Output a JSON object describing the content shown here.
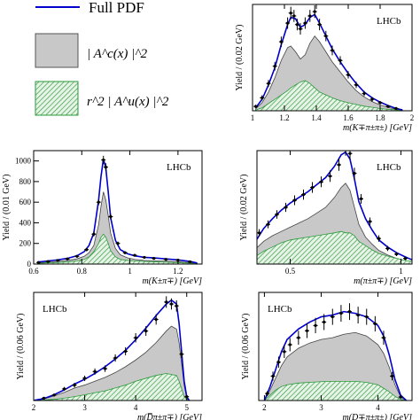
{
  "legend": {
    "entries": [
      {
        "label": "Full PDF",
        "style": "line",
        "color": "#0000cc"
      },
      {
        "label": "| A^c(x) |^2",
        "style": "gray-fill",
        "color": "#c8c8c8"
      },
      {
        "label": "r^2 | A^u(x) |^2",
        "style": "green-hatch",
        "color": "#2a9a3a"
      }
    ]
  },
  "colors": {
    "full_pdf": "#0000cc",
    "component_c": "#c8c8c8",
    "component_u": "#2a9a3a",
    "data": "#000000"
  },
  "chart_data": [
    {
      "id": "k_pi_pi",
      "type": "line",
      "title": "LHCb",
      "xlabel": "m(K∓π±π±) [GeV]",
      "ylabel": "Yield / (0.02 GeV)",
      "xlim": [
        1.0,
        2.0
      ],
      "ylim": [
        0,
        370
      ],
      "xticks": [
        1,
        1.2,
        1.4,
        1.6,
        1.8,
        2
      ],
      "xticklabels": [
        "1",
        "1.2",
        "1.4",
        "1.6",
        "1.8",
        "2"
      ],
      "yticks": [],
      "yticklabels": [],
      "x": [
        1.02,
        1.06,
        1.1,
        1.14,
        1.18,
        1.22,
        1.24,
        1.27,
        1.3,
        1.33,
        1.36,
        1.39,
        1.42,
        1.46,
        1.5,
        1.55,
        1.6,
        1.65,
        1.7,
        1.75,
        1.8,
        1.85,
        1.9,
        1.94
      ],
      "series": [
        {
          "name": "Full PDF",
          "values": [
            10,
            40,
            90,
            150,
            230,
            300,
            325,
            320,
            290,
            300,
            325,
            335,
            305,
            260,
            215,
            170,
            130,
            95,
            65,
            45,
            30,
            18,
            8,
            3
          ]
        },
        {
          "name": "| A^c(x) |^2",
          "values": [
            7,
            28,
            65,
            115,
            175,
            220,
            225,
            205,
            180,
            195,
            235,
            260,
            240,
            205,
            170,
            135,
            100,
            70,
            48,
            32,
            20,
            12,
            5,
            2
          ]
        },
        {
          "name": "r^2 | A^u(x) |^2",
          "values": [
            3,
            10,
            25,
            40,
            55,
            70,
            80,
            90,
            100,
            105,
            95,
            80,
            65,
            55,
            45,
            35,
            28,
            22,
            16,
            12,
            8,
            5,
            3,
            1
          ]
        }
      ],
      "points": {
        "x": [
          1.02,
          1.06,
          1.1,
          1.14,
          1.18,
          1.22,
          1.24,
          1.26,
          1.28,
          1.3,
          1.33,
          1.36,
          1.39,
          1.42,
          1.46,
          1.5,
          1.55,
          1.6,
          1.65,
          1.7,
          1.75,
          1.8,
          1.85,
          1.9
        ],
        "y": [
          15,
          45,
          95,
          155,
          240,
          305,
          340,
          330,
          300,
          285,
          305,
          330,
          345,
          300,
          260,
          210,
          175,
          125,
          90,
          60,
          40,
          28,
          15,
          8
        ],
        "err": [
          6,
          9,
          12,
          15,
          18,
          20,
          22,
          21,
          20,
          20,
          20,
          21,
          22,
          20,
          18,
          17,
          15,
          13,
          11,
          9,
          8,
          6,
          5,
          4
        ]
      }
    },
    {
      "id": "k_pi",
      "type": "line",
      "title": "LHCb",
      "xlabel": "m(K±π∓) [GeV]",
      "ylabel": "Yield / (0.01 GeV)",
      "xlim": [
        0.6,
        1.3
      ],
      "ylim": [
        0,
        1100
      ],
      "xticks": [
        0.6,
        0.8,
        1.0,
        1.2
      ],
      "xticklabels": [
        "0.6",
        "0.8",
        "1",
        "1.2"
      ],
      "yticks": [
        0,
        200,
        400,
        600,
        800,
        1000
      ],
      "yticklabels": [
        "0",
        "200",
        "400",
        "600",
        "800",
        "1000"
      ],
      "x": [
        0.62,
        0.66,
        0.7,
        0.74,
        0.78,
        0.81,
        0.83,
        0.85,
        0.87,
        0.88,
        0.89,
        0.9,
        0.91,
        0.92,
        0.94,
        0.96,
        0.99,
        1.02,
        1.06,
        1.1,
        1.15,
        1.2,
        1.25,
        1.28
      ],
      "series": [
        {
          "name": "Full PDF",
          "values": [
            20,
            30,
            40,
            55,
            80,
            120,
            180,
            300,
            620,
            850,
            1020,
            930,
            700,
            450,
            230,
            140,
            100,
            80,
            65,
            60,
            50,
            40,
            25,
            10
          ]
        },
        {
          "name": "| A^c(x) |^2",
          "values": [
            12,
            18,
            25,
            35,
            50,
            75,
            110,
            180,
            380,
            560,
            700,
            620,
            470,
            300,
            150,
            90,
            60,
            45,
            35,
            32,
            28,
            22,
            14,
            6
          ]
        },
        {
          "name": "r^2 | A^u(x) |^2",
          "values": [
            8,
            12,
            15,
            20,
            30,
            45,
            70,
            120,
            200,
            260,
            290,
            260,
            200,
            130,
            70,
            45,
            35,
            30,
            25,
            22,
            18,
            14,
            9,
            4
          ]
        }
      ],
      "points": {
        "x": [
          0.62,
          0.66,
          0.7,
          0.74,
          0.78,
          0.82,
          0.85,
          0.87,
          0.89,
          0.9,
          0.92,
          0.95,
          0.98,
          1.02,
          1.06,
          1.1,
          1.15,
          1.2,
          1.25
        ],
        "y": [
          15,
          25,
          35,
          50,
          75,
          140,
          290,
          600,
          1010,
          940,
          460,
          200,
          110,
          85,
          65,
          55,
          45,
          38,
          22
        ],
        "err": [
          6,
          8,
          9,
          10,
          12,
          16,
          22,
          30,
          40,
          38,
          27,
          18,
          13,
          11,
          10,
          9,
          8,
          7,
          6
        ]
      }
    },
    {
      "id": "pi_pi",
      "type": "line",
      "title": "LHCb",
      "xlabel": "m(π±π∓) [GeV]",
      "ylabel": "Yield / (0.02 GeV)",
      "xlim": [
        0.35,
        1.05
      ],
      "ylim": [
        0,
        400
      ],
      "xticks": [
        0.5,
        1.0
      ],
      "xticklabels": [
        "0.5",
        "1"
      ],
      "yticks": [],
      "yticklabels": [],
      "x": [
        0.3,
        0.34,
        0.38,
        0.42,
        0.46,
        0.5,
        0.54,
        0.58,
        0.62,
        0.66,
        0.7,
        0.73,
        0.75,
        0.77,
        0.79,
        0.81,
        0.84,
        0.87,
        0.9,
        0.94,
        0.98,
        1.02,
        1.05
      ],
      "series": [
        {
          "name": "Full PDF",
          "values": [
            25,
            75,
            125,
            160,
            190,
            215,
            235,
            255,
            280,
            305,
            345,
            385,
            395,
            370,
            300,
            220,
            160,
            120,
            85,
            60,
            40,
            25,
            15
          ]
        },
        {
          "name": "| A^c(x) |^2",
          "values": [
            15,
            50,
            80,
            100,
            115,
            130,
            145,
            160,
            180,
            200,
            235,
            270,
            285,
            260,
            200,
            140,
            95,
            70,
            48,
            32,
            20,
            12,
            6
          ]
        },
        {
          "name": "r^2 | A^u(x) |^2",
          "values": [
            10,
            25,
            45,
            60,
            75,
            85,
            90,
            95,
            100,
            105,
            110,
            115,
            110,
            110,
            100,
            80,
            65,
            50,
            37,
            28,
            20,
            13,
            9
          ]
        }
      ],
      "points": {
        "x": [
          0.32,
          0.36,
          0.4,
          0.44,
          0.48,
          0.52,
          0.56,
          0.6,
          0.64,
          0.68,
          0.72,
          0.75,
          0.77,
          0.79,
          0.82,
          0.86,
          0.9,
          0.94,
          0.98,
          1.02
        ],
        "y": [
          50,
          110,
          140,
          175,
          200,
          225,
          245,
          270,
          290,
          310,
          350,
          405,
          390,
          320,
          230,
          150,
          90,
          55,
          35,
          20
        ],
        "err": [
          10,
          13,
          14,
          15,
          16,
          17,
          18,
          19,
          19,
          20,
          21,
          23,
          22,
          20,
          17,
          14,
          11,
          9,
          7,
          6
        ]
      }
    },
    {
      "id": "d_pi_pi",
      "type": "line",
      "title": "LHCb",
      "xlabel": "m(D̅π±π∓) [GeV]",
      "ylabel": "Yield / (0.06 GeV)",
      "xlim": [
        2.0,
        5.3
      ],
      "ylim": [
        0,
        560
      ],
      "xticks": [
        2,
        3,
        4,
        5
      ],
      "xticklabels": [
        "2",
        "3",
        "4",
        "5"
      ],
      "yticks": [],
      "yticklabels": [],
      "x": [
        2.0,
        2.2,
        2.4,
        2.6,
        2.8,
        3.0,
        3.2,
        3.4,
        3.6,
        3.8,
        4.0,
        4.2,
        4.4,
        4.6,
        4.7,
        4.8,
        4.85,
        4.9,
        4.95,
        5.0,
        5.05
      ],
      "series": [
        {
          "name": "Full PDF",
          "values": [
            0,
            10,
            30,
            55,
            85,
            110,
            140,
            175,
            215,
            260,
            315,
            375,
            440,
            500,
            520,
            500,
            400,
            250,
            100,
            20,
            0
          ]
        },
        {
          "name": "| A^c(x) |^2",
          "values": [
            0,
            8,
            24,
            42,
            65,
            80,
            100,
            120,
            145,
            175,
            210,
            250,
            300,
            360,
            385,
            370,
            300,
            190,
            80,
            15,
            0
          ]
        },
        {
          "name": "r^2 | A^u(x) |^2",
          "values": [
            0,
            2,
            6,
            12,
            20,
            30,
            40,
            50,
            65,
            80,
            100,
            115,
            130,
            140,
            135,
            130,
            100,
            60,
            20,
            5,
            0
          ]
        }
      ],
      "points": {
        "x": [
          2.2,
          2.4,
          2.6,
          2.8,
          3.0,
          3.2,
          3.4,
          3.6,
          3.8,
          4.0,
          4.2,
          4.4,
          4.6,
          4.7,
          4.8,
          4.9,
          5.0
        ],
        "y": [
          12,
          28,
          60,
          80,
          115,
          150,
          165,
          220,
          255,
          325,
          360,
          420,
          510,
          500,
          490,
          240,
          20
        ],
        "err": [
          5,
          7,
          10,
          12,
          14,
          16,
          17,
          19,
          21,
          24,
          25,
          27,
          30,
          29,
          29,
          20,
          6
        ]
      }
    },
    {
      "id": "d_pi_pi_2",
      "type": "line",
      "title": "LHCb",
      "xlabel": "m(D∓π±π±) [GeV]",
      "ylabel": "Yield / (0.06 GeV)",
      "xlim": [
        1.9,
        4.6
      ],
      "ylim": [
        0,
        310
      ],
      "xticks": [
        2,
        3,
        4
      ],
      "xticklabels": [
        "2",
        "3",
        "4"
      ],
      "yticks": [],
      "yticklabels": [],
      "x": [
        2.0,
        2.1,
        2.2,
        2.3,
        2.4,
        2.6,
        2.8,
        3.0,
        3.2,
        3.4,
        3.6,
        3.8,
        4.0,
        4.1,
        4.2,
        4.3,
        4.4,
        4.5
      ],
      "series": [
        {
          "name": "Full PDF",
          "values": [
            0,
            40,
            90,
            140,
            175,
            205,
            225,
            240,
            245,
            255,
            250,
            240,
            215,
            185,
            130,
            60,
            15,
            0
          ]
        },
        {
          "name": "| A^c(x) |^2",
          "values": [
            0,
            30,
            65,
            100,
            125,
            150,
            165,
            175,
            180,
            190,
            195,
            185,
            160,
            135,
            95,
            45,
            10,
            0
          ]
        },
        {
          "name": "r^2 | A^u(x) |^2",
          "values": [
            0,
            15,
            30,
            40,
            45,
            50,
            52,
            54,
            55,
            55,
            55,
            52,
            45,
            35,
            25,
            12,
            3,
            0
          ]
        }
      ],
      "points": {
        "x": [
          2.05,
          2.15,
          2.25,
          2.35,
          2.45,
          2.6,
          2.75,
          2.9,
          3.05,
          3.2,
          3.35,
          3.5,
          3.65,
          3.8,
          3.95,
          4.1,
          4.25,
          4.4
        ],
        "y": [
          20,
          70,
          110,
          140,
          160,
          180,
          200,
          215,
          225,
          240,
          250,
          255,
          245,
          240,
          220,
          180,
          70,
          10
        ],
        "err": [
          7,
          13,
          16,
          18,
          19,
          20,
          21,
          22,
          23,
          23,
          24,
          24,
          24,
          23,
          22,
          20,
          12,
          4
        ]
      }
    }
  ]
}
